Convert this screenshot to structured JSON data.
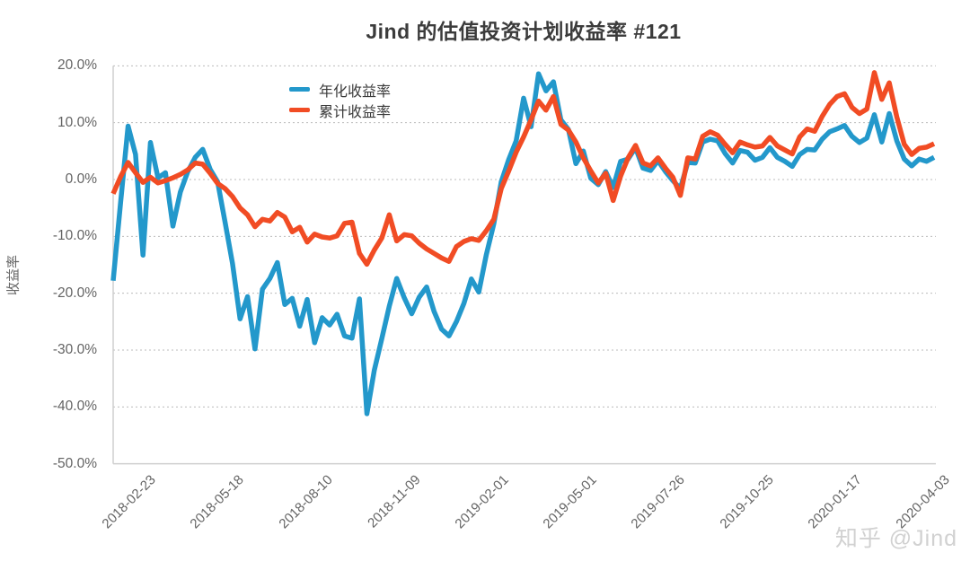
{
  "title": "Jind 的估值投资计划收益率 #121",
  "watermark": "知乎 @Jind",
  "chart_data": {
    "type": "line",
    "title": "Jind 的估值投资计划收益率 #121",
    "xlabel": "",
    "ylabel": "收益率",
    "ylim": [
      -50,
      20
    ],
    "grid": "horizontal dotted",
    "legend_position": "inside top-left",
    "axis_color": "#cfcfcf",
    "grid_color": "#bbbbbb",
    "text_color": "#636363",
    "ytick_labels": [
      "20.0%",
      "10.0%",
      "0.0%",
      "-10.0%",
      "-20.0%",
      "-30.0%",
      "-40.0%",
      "-50.0%"
    ],
    "ytick_values": [
      20,
      10,
      0,
      -10,
      -20,
      -30,
      -40,
      -50
    ],
    "xtick_labels": [
      "2018-02-23",
      "2018-05-18",
      "2018-08-10",
      "2018-11-09",
      "2019-02-01",
      "2019-05-01",
      "2019-07-26",
      "2019-10-25",
      "2020-01-17",
      "2020-04-03"
    ],
    "x_range_note": "weekly points, index 0 to 110",
    "series": [
      {
        "name": "年化收益率",
        "color": "#2398cb",
        "values": [
          -17.8,
          -4.0,
          9.4,
          4.4,
          -13.3,
          6.5,
          0.3,
          1.2,
          -8.2,
          -2.2,
          1.4,
          3.9,
          5.3,
          1.8,
          -0.4,
          -7.5,
          -14.8,
          -24.5,
          -20.6,
          -29.8,
          -19.3,
          -17.4,
          -14.6,
          -22.0,
          -20.9,
          -25.8,
          -21.1,
          -28.7,
          -24.3,
          -25.6,
          -23.7,
          -27.5,
          -27.9,
          -21.0,
          -41.2,
          -33.5,
          -28.0,
          -22.3,
          -17.4,
          -20.8,
          -23.6,
          -20.7,
          -18.9,
          -23.2,
          -26.3,
          -27.5,
          -25.0,
          -21.8,
          -17.5,
          -19.8,
          -13.2,
          -7.8,
          -0.4,
          3.5,
          6.8,
          14.3,
          9.3,
          18.6,
          15.6,
          17.2,
          10.5,
          8.8,
          2.8,
          5.0,
          0.2,
          -0.9,
          1.4,
          -1.4,
          3.2,
          3.6,
          5.6,
          2.0,
          1.6,
          3.3,
          1.4,
          -0.2,
          -1.6,
          3.0,
          2.9,
          6.6,
          7.1,
          6.8,
          4.6,
          2.9,
          5.1,
          4.8,
          3.4,
          3.9,
          5.6,
          3.9,
          3.2,
          2.3,
          4.4,
          5.3,
          5.2,
          7.1,
          8.4,
          8.9,
          9.5,
          7.6,
          6.5,
          7.3,
          11.4,
          6.6,
          11.6,
          6.8,
          3.6,
          2.4,
          3.6,
          3.2,
          3.9
        ]
      },
      {
        "name": "累计收益率",
        "color": "#f14c24",
        "values": [
          -2.5,
          0.5,
          3.0,
          1.2,
          -0.5,
          0.4,
          -0.6,
          -0.2,
          0.3,
          0.9,
          1.7,
          2.9,
          2.7,
          1.1,
          -0.7,
          -1.6,
          -3.0,
          -5.0,
          -6.2,
          -8.3,
          -7.0,
          -7.3,
          -5.8,
          -6.6,
          -9.2,
          -8.4,
          -11.0,
          -9.6,
          -10.1,
          -10.3,
          -9.9,
          -7.7,
          -7.5,
          -13.0,
          -14.9,
          -12.4,
          -10.3,
          -6.2,
          -10.8,
          -9.7,
          -9.9,
          -11.2,
          -12.2,
          -13.0,
          -13.8,
          -14.4,
          -11.8,
          -10.9,
          -10.4,
          -10.7,
          -9.0,
          -7.0,
          -1.6,
          1.5,
          4.8,
          7.5,
          10.5,
          13.8,
          12.2,
          14.6,
          9.7,
          8.7,
          6.6,
          3.8,
          1.5,
          -0.6,
          1.1,
          -3.7,
          0.6,
          3.8,
          6.0,
          2.9,
          2.4,
          3.8,
          2.0,
          0.4,
          -2.8,
          3.8,
          3.6,
          7.6,
          8.4,
          7.8,
          6.2,
          4.7,
          6.6,
          6.1,
          5.7,
          5.9,
          7.4,
          5.9,
          5.2,
          4.5,
          7.5,
          8.9,
          8.5,
          11.1,
          13.2,
          14.6,
          15.1,
          12.7,
          11.6,
          12.4,
          18.8,
          14.1,
          17.0,
          11.0,
          6.2,
          4.4,
          5.5,
          5.7,
          6.3
        ]
      }
    ]
  }
}
